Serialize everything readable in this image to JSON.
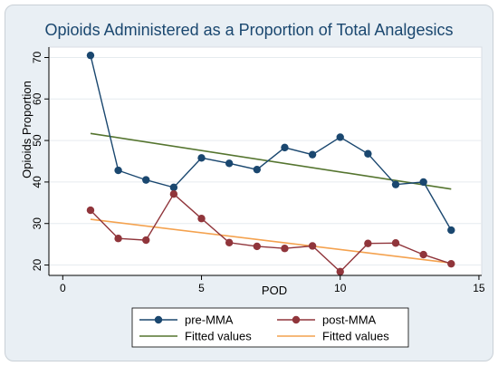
{
  "chart_data": {
    "type": "line",
    "title": "Opioids Administered as a Proportion of Total Analgesics",
    "xlabel": "POD",
    "ylabel": "Opioids Proportion",
    "xlim": [
      -0.5,
      15.1
    ],
    "ylim": [
      17.5,
      72.5
    ],
    "x_ticks": [
      0,
      5,
      10,
      15
    ],
    "y_ticks": [
      20,
      30,
      40,
      50,
      60,
      70
    ],
    "grid": "horizontal",
    "legend_position": "bottom",
    "series": [
      {
        "name": "pre-MMA",
        "kind": "line-markers",
        "color": "#1a476f",
        "x": [
          1,
          2,
          3,
          4,
          5,
          6,
          7,
          8,
          9,
          10,
          11,
          12,
          13,
          14
        ],
        "values": [
          70.5,
          42.8,
          40.5,
          38.7,
          45.8,
          44.5,
          43.0,
          48.3,
          46.6,
          50.8,
          46.8,
          39.4,
          40.0,
          28.4
        ]
      },
      {
        "name": "post-MMA",
        "kind": "line-markers",
        "color": "#90353b",
        "x": [
          1,
          2,
          3,
          4,
          5,
          6,
          7,
          8,
          9,
          10,
          11,
          12,
          13,
          14
        ],
        "values": [
          33.2,
          26.4,
          26.0,
          37.1,
          31.2,
          25.4,
          24.5,
          24.0,
          24.6,
          18.4,
          25.2,
          25.3,
          22.5,
          20.3
        ]
      },
      {
        "name": "Fitted values",
        "kind": "line",
        "color": "#55752f",
        "x": [
          1,
          14
        ],
        "values": [
          51.7,
          38.3
        ]
      },
      {
        "name": "Fitted values",
        "kind": "line",
        "color": "#f4a24f",
        "x": [
          1,
          14
        ],
        "values": [
          31.0,
          20.5
        ]
      }
    ]
  }
}
